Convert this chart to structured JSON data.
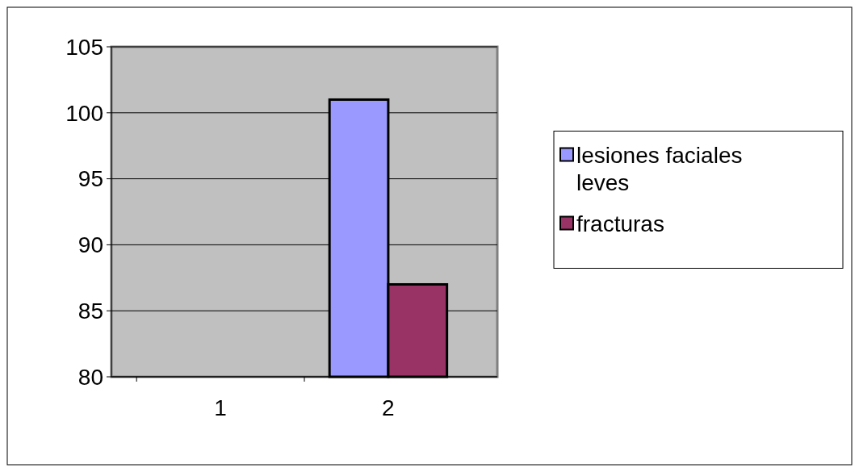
{
  "chart_data": {
    "type": "bar",
    "categories": [
      "1",
      "2"
    ],
    "series": [
      {
        "name": "lesiones faciales leves",
        "color": "#9999ff",
        "values": [
          null,
          101
        ]
      },
      {
        "name": "fracturas",
        "color": "#993366",
        "values": [
          null,
          87
        ]
      }
    ],
    "ylim": [
      80,
      105
    ],
    "yticks": [
      80,
      85,
      90,
      95,
      100,
      105
    ],
    "grid": "y",
    "legend": "right"
  }
}
